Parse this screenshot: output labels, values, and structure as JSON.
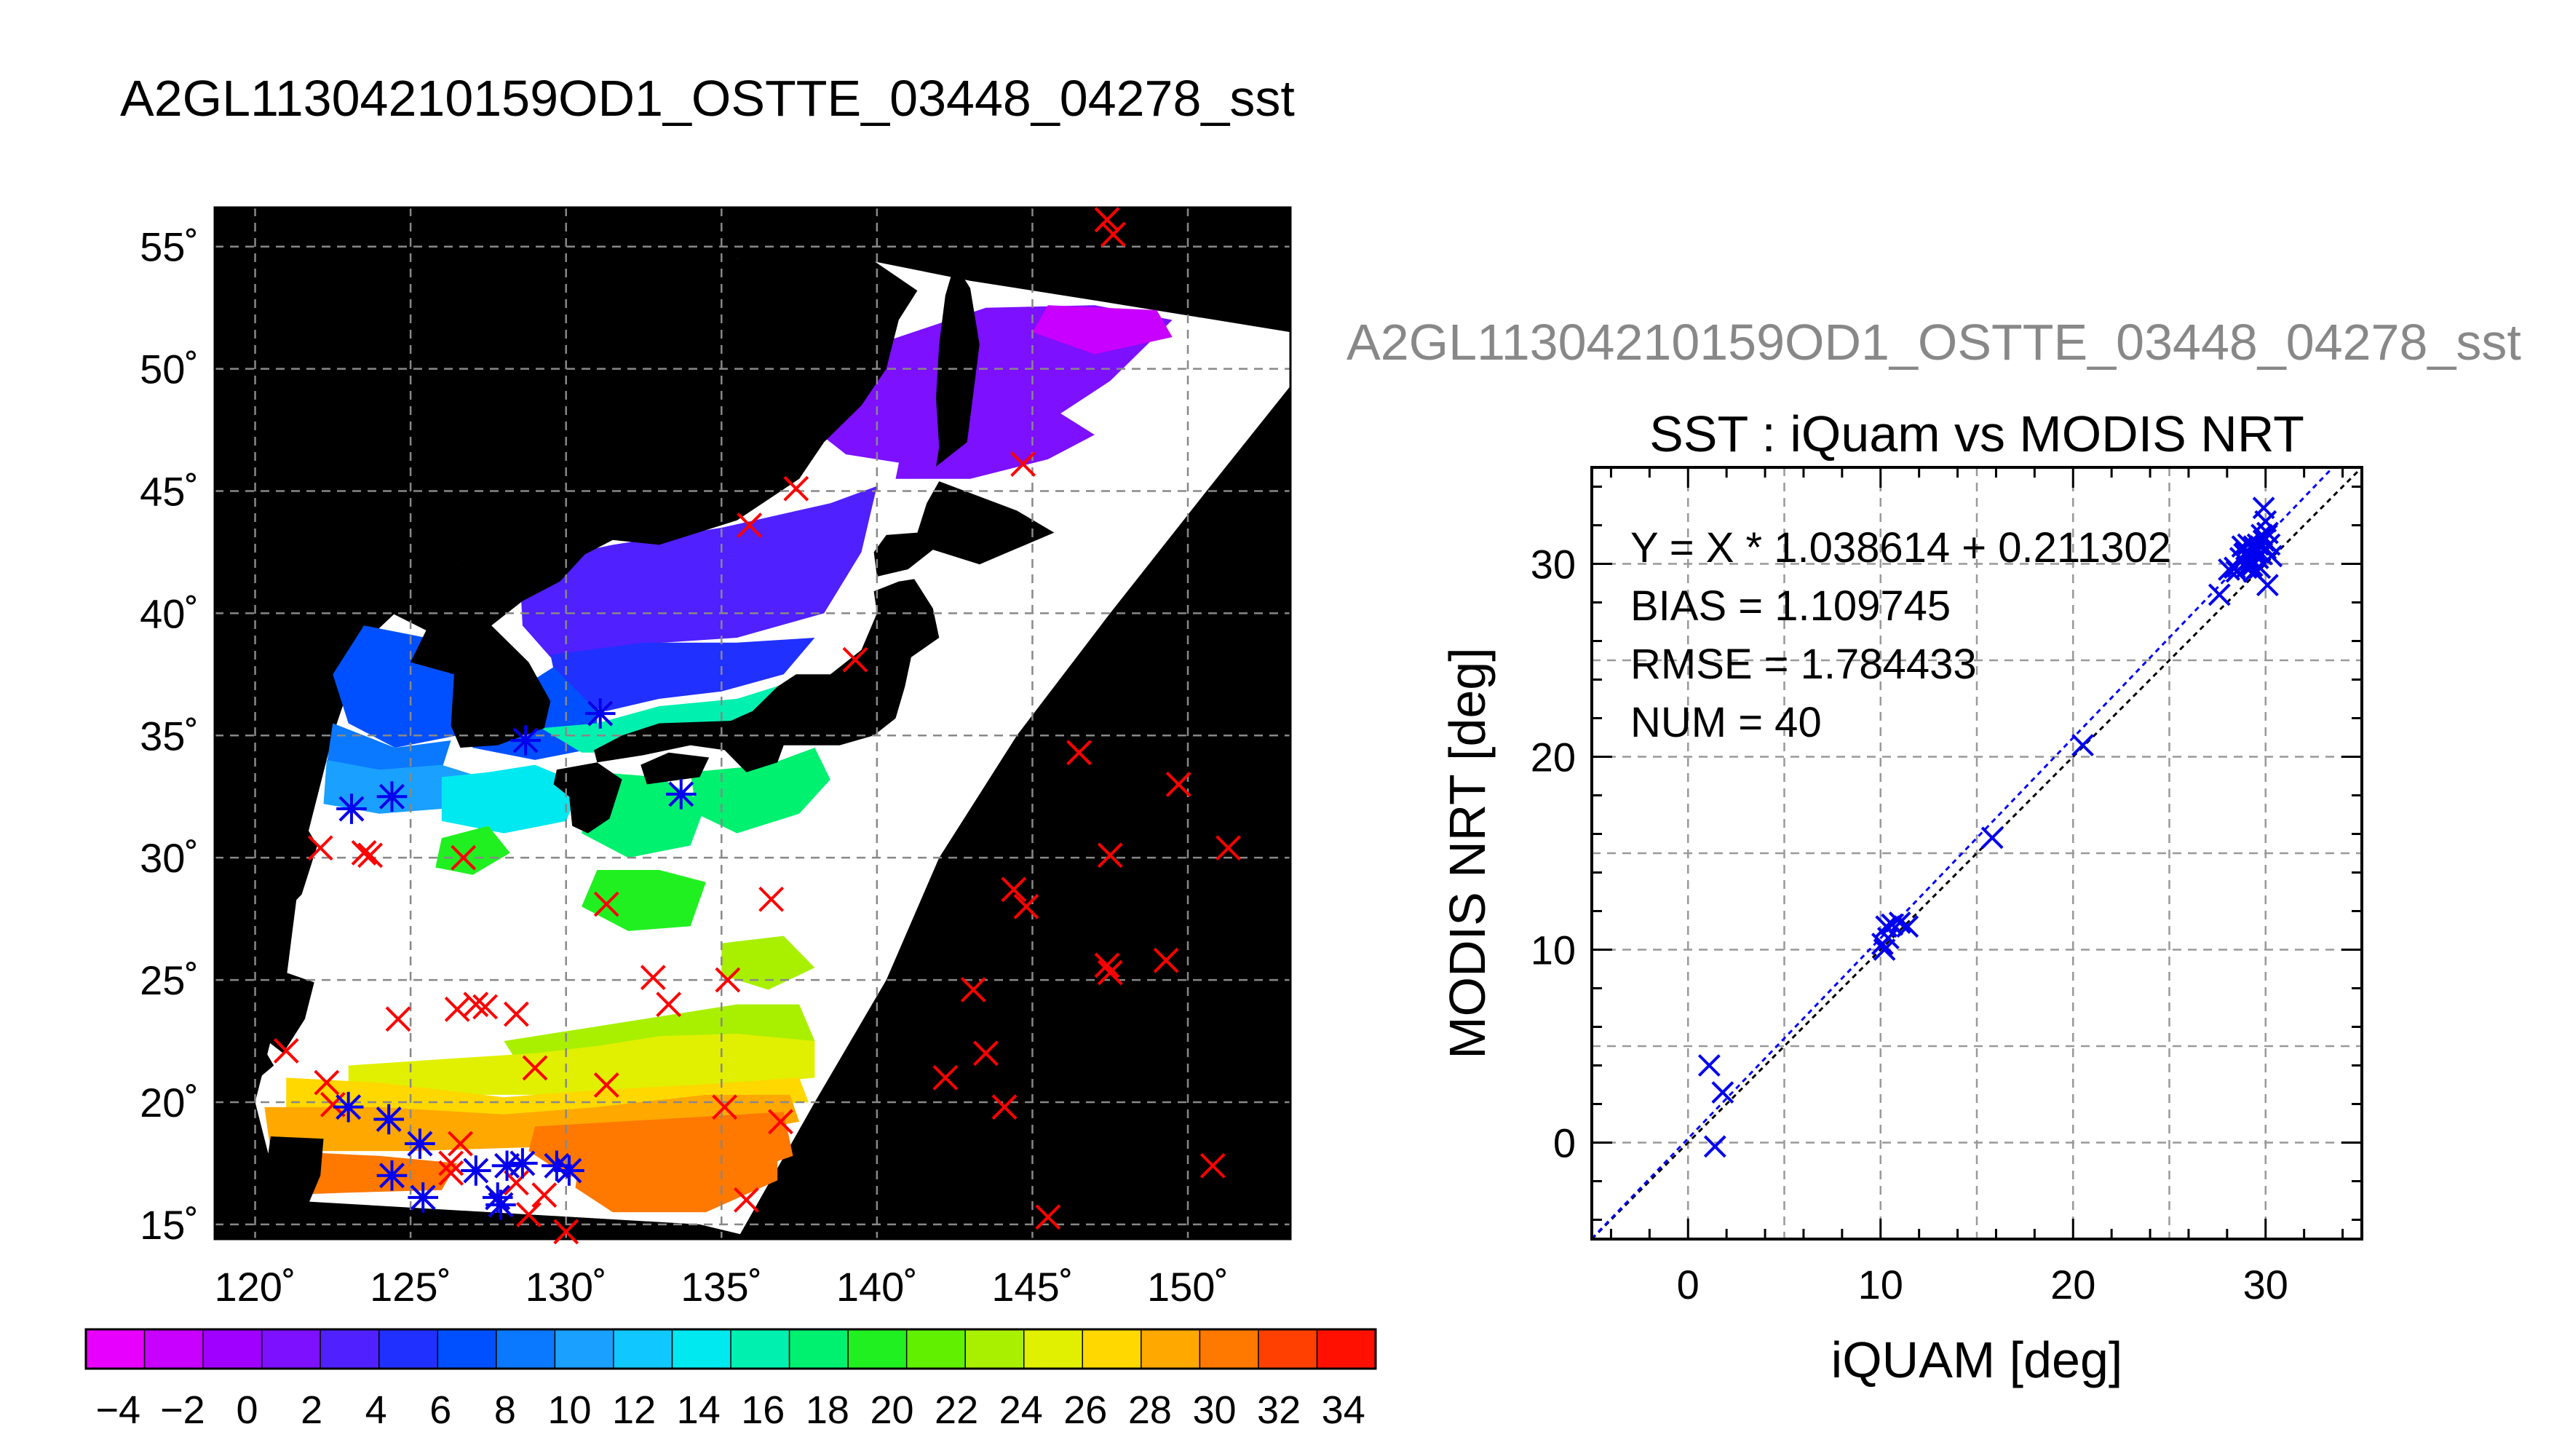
{
  "file_title": "A2GL11304210159OD1_OSTTE_03448_04278_sst",
  "colors": {
    "land": "#000000",
    "cloud": "#ffffff",
    "marker_red": "#ff0000",
    "marker_blue": "#0000ee",
    "fit_line": "#0000ff",
    "identity_line": "#000000"
  },
  "chart_data": [
    {
      "type": "heatmap",
      "title": "",
      "x_tick_labels": [
        "120˚",
        "125˚",
        "130˚",
        "135˚",
        "140˚",
        "145˚",
        "150˚"
      ],
      "y_tick_labels": [
        "15˚",
        "20˚",
        "25˚",
        "30˚",
        "35˚",
        "40˚",
        "45˚",
        "50˚",
        "55˚"
      ],
      "xlim": [
        118.7,
        153.3
      ],
      "ylim": [
        14.4,
        56.6
      ],
      "x_ticks": [
        120,
        125,
        130,
        135,
        140,
        145,
        150
      ],
      "y_ticks": [
        15,
        20,
        25,
        30,
        35,
        40,
        45,
        50,
        55
      ],
      "grid": true,
      "colorbar": {
        "range": [
          -5,
          35
        ],
        "tick_values": [
          -4,
          -2,
          0,
          2,
          4,
          6,
          8,
          10,
          12,
          14,
          16,
          18,
          20,
          22,
          24,
          26,
          28,
          30,
          32,
          34
        ],
        "tick_labels": [
          "−4",
          "−2",
          "0",
          "2",
          "4",
          "6",
          "8",
          "10",
          "12",
          "14",
          "16",
          "18",
          "20",
          "22",
          "24",
          "26",
          "28",
          "30",
          "32",
          "34"
        ],
        "colors": [
          "#e800ff",
          "#c800ff",
          "#a000ff",
          "#7c10ff",
          "#5020ff",
          "#2030ff",
          "#0050ff",
          "#0a78ff",
          "#1aa0ff",
          "#10c8ff",
          "#00e8f0",
          "#00f0b0",
          "#00f070",
          "#20f020",
          "#60f000",
          "#a8f000",
          "#e0f000",
          "#ffd800",
          "#ffa800",
          "#ff7800",
          "#ff4000",
          "#ff1000"
        ]
      },
      "markers": {
        "iquam_points": [
          [
            123.1,
            32.0
          ],
          [
            124.4,
            32.5
          ],
          [
            128.7,
            34.8
          ],
          [
            131.1,
            35.9
          ],
          [
            133.7,
            32.6
          ],
          [
            123.0,
            19.8
          ],
          [
            124.3,
            19.3
          ],
          [
            124.4,
            17.0
          ],
          [
            125.3,
            18.3
          ],
          [
            125.4,
            16.1
          ],
          [
            127.1,
            17.2
          ],
          [
            127.8,
            16.1
          ],
          [
            128.1,
            17.4
          ],
          [
            128.6,
            17.5
          ],
          [
            129.7,
            17.4
          ],
          [
            130.1,
            17.2
          ],
          [
            127.9,
            15.8
          ]
        ],
        "no_match_points": [
          [
            147.4,
            56.1
          ],
          [
            147.6,
            55.5
          ],
          [
            144.7,
            46.1
          ],
          [
            137.4,
            45.1
          ],
          [
            135.9,
            43.6
          ],
          [
            139.3,
            38.1
          ],
          [
            146.5,
            34.3
          ],
          [
            149.7,
            33.0
          ],
          [
            151.3,
            30.4
          ],
          [
            147.5,
            30.1
          ],
          [
            144.4,
            28.7
          ],
          [
            144.8,
            28.0
          ],
          [
            147.4,
            25.6
          ],
          [
            147.5,
            25.3
          ],
          [
            149.3,
            25.8
          ],
          [
            143.1,
            24.6
          ],
          [
            143.5,
            22.0
          ],
          [
            142.2,
            21.0
          ],
          [
            144.1,
            19.8
          ],
          [
            150.8,
            17.4
          ],
          [
            145.5,
            15.3
          ],
          [
            136.6,
            28.3
          ],
          [
            131.3,
            28.1
          ],
          [
            132.8,
            25.1
          ],
          [
            133.3,
            24.0
          ],
          [
            135.2,
            25.0
          ],
          [
            128.4,
            23.6
          ],
          [
            126.5,
            23.8
          ],
          [
            127.1,
            24.0
          ],
          [
            127.4,
            23.9
          ],
          [
            124.6,
            23.4
          ],
          [
            129.0,
            21.4
          ],
          [
            131.3,
            20.7
          ],
          [
            136.9,
            19.2
          ],
          [
            135.1,
            19.8
          ],
          [
            126.6,
            18.3
          ],
          [
            126.3,
            17.5
          ],
          [
            121.0,
            22.1
          ],
          [
            122.3,
            20.8
          ],
          [
            122.1,
            30.4
          ],
          [
            123.5,
            30.2
          ],
          [
            123.7,
            30.1
          ],
          [
            126.7,
            30.0
          ],
          [
            122.5,
            19.9
          ],
          [
            135.8,
            16.0
          ],
          [
            130.0,
            14.7
          ],
          [
            128.4,
            16.7
          ],
          [
            128.8,
            15.4
          ],
          [
            129.3,
            16.2
          ],
          [
            126.3,
            17.1
          ]
        ]
      }
    },
    {
      "type": "scatter",
      "title": "SST : iQuam vs MODIS NRT",
      "xlabel": "iQUAM [deg]",
      "ylabel": "MODIS NRT [deg]",
      "xlim": [
        -5,
        35
      ],
      "ylim": [
        -5,
        35
      ],
      "x_ticks": [
        0,
        10,
        20,
        30
      ],
      "y_ticks": [
        0,
        10,
        20,
        30
      ],
      "grid": true,
      "stats": {
        "equation": "Y = X * 1.038614 + 0.211302",
        "bias": "BIAS = 1.109745",
        "rmse": "RMSE = 1.784433",
        "num": "NUM = 40"
      },
      "fit": {
        "slope": 1.038614,
        "intercept": 0.211302
      },
      "points": [
        [
          1.1,
          4.0
        ],
        [
          1.4,
          -0.2
        ],
        [
          1.8,
          2.6
        ],
        [
          10.1,
          10.3
        ],
        [
          10.2,
          10.0
        ],
        [
          10.4,
          10.6
        ],
        [
          10.3,
          11.2
        ],
        [
          10.6,
          11.3
        ],
        [
          11.0,
          11.4
        ],
        [
          11.4,
          11.2
        ],
        [
          15.8,
          15.8
        ],
        [
          20.5,
          20.6
        ],
        [
          27.6,
          28.4
        ],
        [
          28.1,
          29.7
        ],
        [
          28.4,
          29.8
        ],
        [
          28.7,
          30.3
        ],
        [
          29.0,
          30.6
        ],
        [
          29.2,
          30.2
        ],
        [
          29.4,
          30.9
        ],
        [
          29.6,
          31.0
        ],
        [
          29.8,
          30.5
        ],
        [
          29.9,
          31.2
        ],
        [
          30.0,
          30.8
        ],
        [
          29.7,
          29.8
        ],
        [
          29.5,
          30.6
        ],
        [
          29.1,
          31.0
        ],
        [
          28.9,
          30.5
        ],
        [
          29.3,
          29.9
        ],
        [
          30.1,
          31.6
        ],
        [
          30.0,
          32.2
        ],
        [
          29.9,
          32.9
        ],
        [
          30.1,
          28.9
        ],
        [
          28.5,
          29.6
        ],
        [
          29.0,
          29.8
        ],
        [
          29.6,
          30.3
        ],
        [
          29.8,
          31.5
        ],
        [
          30.2,
          31.0
        ],
        [
          28.8,
          30.9
        ],
        [
          29.4,
          29.6
        ],
        [
          30.3,
          30.4
        ]
      ]
    }
  ]
}
